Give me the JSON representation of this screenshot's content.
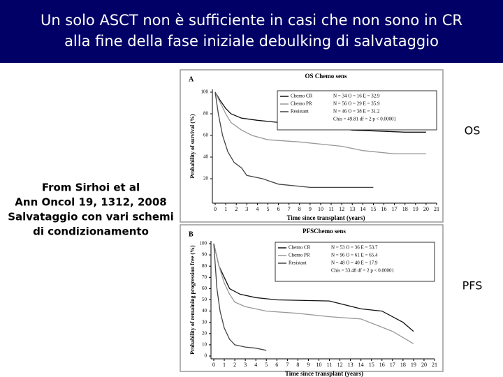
{
  "slide": {
    "title_lines": [
      "Un solo ASCT non è sufficiente in casi che non sono in CR",
      "alla fine della fase iniziale debulking di salvataggio"
    ],
    "source_lines": [
      "From Sirhoi et al",
      "Ann Oncol 19, 1312, 2008",
      "Salvataggio con vari schemi",
      "di condizionamento"
    ],
    "side_labels": [
      "OS",
      "PFS"
    ]
  },
  "chart_data": [
    {
      "type": "line",
      "panel_label": "A",
      "title": "OS Chemo sens",
      "x_label": "Time since transplant (years)",
      "y_label": "Probability of survival (%)",
      "xlim": [
        0,
        21
      ],
      "xticks": [
        0,
        1,
        2,
        3,
        4,
        5,
        6,
        7,
        8,
        9,
        10,
        11,
        12,
        13,
        14,
        15,
        16,
        17,
        18,
        19,
        20,
        21
      ],
      "ylim": [
        0,
        100
      ],
      "yticks": [
        20,
        40,
        60,
        80,
        100
      ],
      "test_text": "Chis = 49.81  df = 2  p < 0.00001",
      "series": [
        {
          "name": "Chemo CR",
          "stats": "N = 34  O = 16  E = 32.9",
          "color": "#111111",
          "x": [
            0,
            0.5,
            1,
            1.5,
            2.5,
            4,
            6,
            10,
            13,
            18,
            20
          ],
          "values": [
            100,
            92,
            85,
            80,
            76,
            74,
            72,
            70,
            65,
            63,
            63
          ]
        },
        {
          "name": "Chemo PR",
          "stats": "N = 56  O = 29  E = 35.9",
          "color": "#999999",
          "x": [
            0,
            0.5,
            1,
            1.5,
            2.5,
            3.5,
            5,
            8,
            12,
            14,
            17,
            20
          ],
          "values": [
            100,
            90,
            80,
            72,
            65,
            60,
            56,
            54,
            50,
            46,
            43,
            43
          ]
        },
        {
          "name": "Resistant",
          "stats": "N = 46  O = 38  E = 31.2",
          "color": "#444444",
          "x": [
            0,
            0.3,
            0.7,
            1.2,
            1.8,
            2.5,
            3,
            4.5,
            6,
            9,
            15
          ],
          "values": [
            100,
            80,
            60,
            45,
            35,
            30,
            23,
            20,
            15,
            12,
            12
          ]
        }
      ]
    },
    {
      "type": "line",
      "panel_label": "B",
      "title": "PFSChemo sens",
      "x_label": "Time since transplant (years)",
      "y_label": "Probability of remaining progression free (%)",
      "xlim": [
        0,
        21
      ],
      "xticks": [
        0,
        1,
        2,
        3,
        4,
        5,
        6,
        7,
        8,
        9,
        10,
        11,
        12,
        13,
        14,
        15,
        16,
        17,
        18,
        19,
        20,
        21
      ],
      "ylim": [
        0,
        100
      ],
      "yticks": [
        0,
        10,
        20,
        30,
        40,
        50,
        60,
        70,
        80,
        90,
        100
      ],
      "test_text": "Chis = 33.48  df = 2  p < 0.00001",
      "series": [
        {
          "name": "Chemo CR",
          "stats": "N = 53  O = 36  E = 53.7",
          "color": "#111111",
          "x": [
            0,
            0.5,
            1,
            1.5,
            2.5,
            4,
            6,
            11,
            14,
            16,
            18,
            19
          ],
          "values": [
            100,
            80,
            70,
            60,
            55,
            52,
            50,
            49,
            42,
            40,
            30,
            22
          ]
        },
        {
          "name": "Chemo PR",
          "stats": "N = 96  O = 61  E = 65.4",
          "color": "#999999",
          "x": [
            0,
            0.5,
            1,
            1.5,
            2,
            3,
            5,
            8,
            11,
            14,
            17,
            19
          ],
          "values": [
            100,
            80,
            65,
            55,
            48,
            44,
            40,
            38,
            35,
            33,
            22,
            11
          ]
        },
        {
          "name": "Resistant",
          "stats": "N = 48  O = 40  E = 17.9",
          "color": "#444444",
          "x": [
            0,
            0.3,
            0.6,
            1,
            1.5,
            2,
            3,
            4,
            5
          ],
          "values": [
            100,
            60,
            40,
            25,
            15,
            10,
            8,
            7,
            5
          ]
        }
      ]
    }
  ]
}
